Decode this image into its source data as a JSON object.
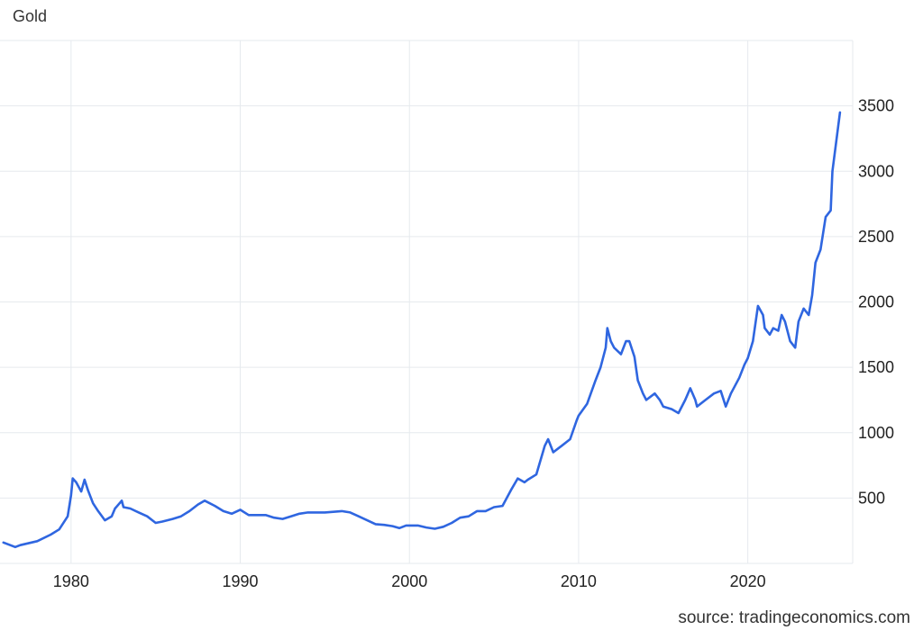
{
  "header": {
    "title": "Gold"
  },
  "footer": {
    "source": "source: tradingeconomics.com"
  },
  "colors": {
    "line": "#2f66e0",
    "grid": "#e6eaee",
    "text": "#222222"
  },
  "chart_data": {
    "type": "line",
    "title": "Gold",
    "xlabel": "",
    "ylabel": "",
    "xlim": [
      1975.8,
      2026.2
    ],
    "ylim": [
      0,
      4000
    ],
    "x_ticks": [
      1980,
      1990,
      2000,
      2010,
      2020
    ],
    "x_tick_labels": [
      "1980",
      "1990",
      "2000",
      "2010",
      "2020"
    ],
    "y_ticks": [
      500,
      1000,
      1500,
      2000,
      2500,
      3000,
      3500
    ],
    "y_tick_labels": [
      "500",
      "1000",
      "1500",
      "2000",
      "2500",
      "3000",
      "3500"
    ],
    "grid": true,
    "series": [
      {
        "x": [
          1976.0,
          1976.7,
          1977.0,
          1978.0,
          1978.8,
          1979.3,
          1979.8,
          1980.0,
          1980.1,
          1980.3,
          1980.6,
          1980.8,
          1981.0,
          1981.3,
          1981.6,
          1982.0,
          1982.4,
          1982.6,
          1983.0,
          1983.1,
          1983.5,
          1984.0,
          1984.5,
          1985.0,
          1985.4,
          1986.0,
          1986.5,
          1987.0,
          1987.5,
          1987.9,
          1988.5,
          1989.0,
          1989.5,
          1990.0,
          1990.5,
          1991.0,
          1991.5,
          1992.0,
          1992.5,
          1993.0,
          1993.5,
          1994.0,
          1995.0,
          1996.0,
          1996.5,
          1997.0,
          1997.5,
          1998.0,
          1998.5,
          1999.0,
          1999.4,
          1999.8,
          2000.5,
          2001.0,
          2001.5,
          2002.0,
          2002.5,
          2003.0,
          2003.5,
          2004.0,
          2004.5,
          2005.0,
          2005.5,
          2006.0,
          2006.4,
          2006.8,
          2007.0,
          2007.5,
          2008.0,
          2008.2,
          2008.5,
          2008.8,
          2009.0,
          2009.5,
          2009.9,
          2010.0,
          2010.5,
          2011.0,
          2011.3,
          2011.6,
          2011.7,
          2011.9,
          2012.1,
          2012.5,
          2012.8,
          2013.0,
          2013.3,
          2013.5,
          2013.8,
          2014.0,
          2014.5,
          2014.8,
          2015.0,
          2015.5,
          2015.9,
          2016.3,
          2016.6,
          2016.9,
          2017.0,
          2017.5,
          2018.0,
          2018.4,
          2018.7,
          2019.0,
          2019.5,
          2019.8,
          2020.0,
          2020.3,
          2020.6,
          2020.9,
          2021.0,
          2021.3,
          2021.5,
          2021.8,
          2022.0,
          2022.2,
          2022.5,
          2022.8,
          2023.0,
          2023.3,
          2023.6,
          2023.8,
          2024.0,
          2024.3,
          2024.6,
          2024.9,
          2025.0,
          2025.3,
          2025.45
        ],
        "values": [
          160,
          125,
          140,
          170,
          220,
          260,
          360,
          520,
          650,
          620,
          550,
          640,
          560,
          460,
          400,
          330,
          360,
          420,
          480,
          430,
          420,
          390,
          360,
          310,
          320,
          340,
          360,
          400,
          450,
          480,
          440,
          400,
          380,
          410,
          370,
          370,
          370,
          350,
          340,
          360,
          380,
          390,
          390,
          400,
          390,
          360,
          330,
          300,
          295,
          285,
          270,
          290,
          290,
          275,
          265,
          280,
          310,
          350,
          360,
          400,
          400,
          430,
          440,
          560,
          650,
          620,
          640,
          680,
          900,
          950,
          850,
          880,
          900,
          950,
          1100,
          1130,
          1220,
          1400,
          1500,
          1650,
          1800,
          1700,
          1650,
          1600,
          1700,
          1700,
          1580,
          1400,
          1300,
          1250,
          1300,
          1250,
          1200,
          1180,
          1150,
          1250,
          1340,
          1250,
          1200,
          1250,
          1300,
          1320,
          1200,
          1300,
          1420,
          1520,
          1570,
          1700,
          1970,
          1900,
          1800,
          1750,
          1800,
          1780,
          1900,
          1850,
          1700,
          1650,
          1850,
          1950,
          1900,
          2050,
          2300,
          2400,
          2650,
          2700,
          3000,
          3300,
          3450
        ]
      }
    ]
  }
}
